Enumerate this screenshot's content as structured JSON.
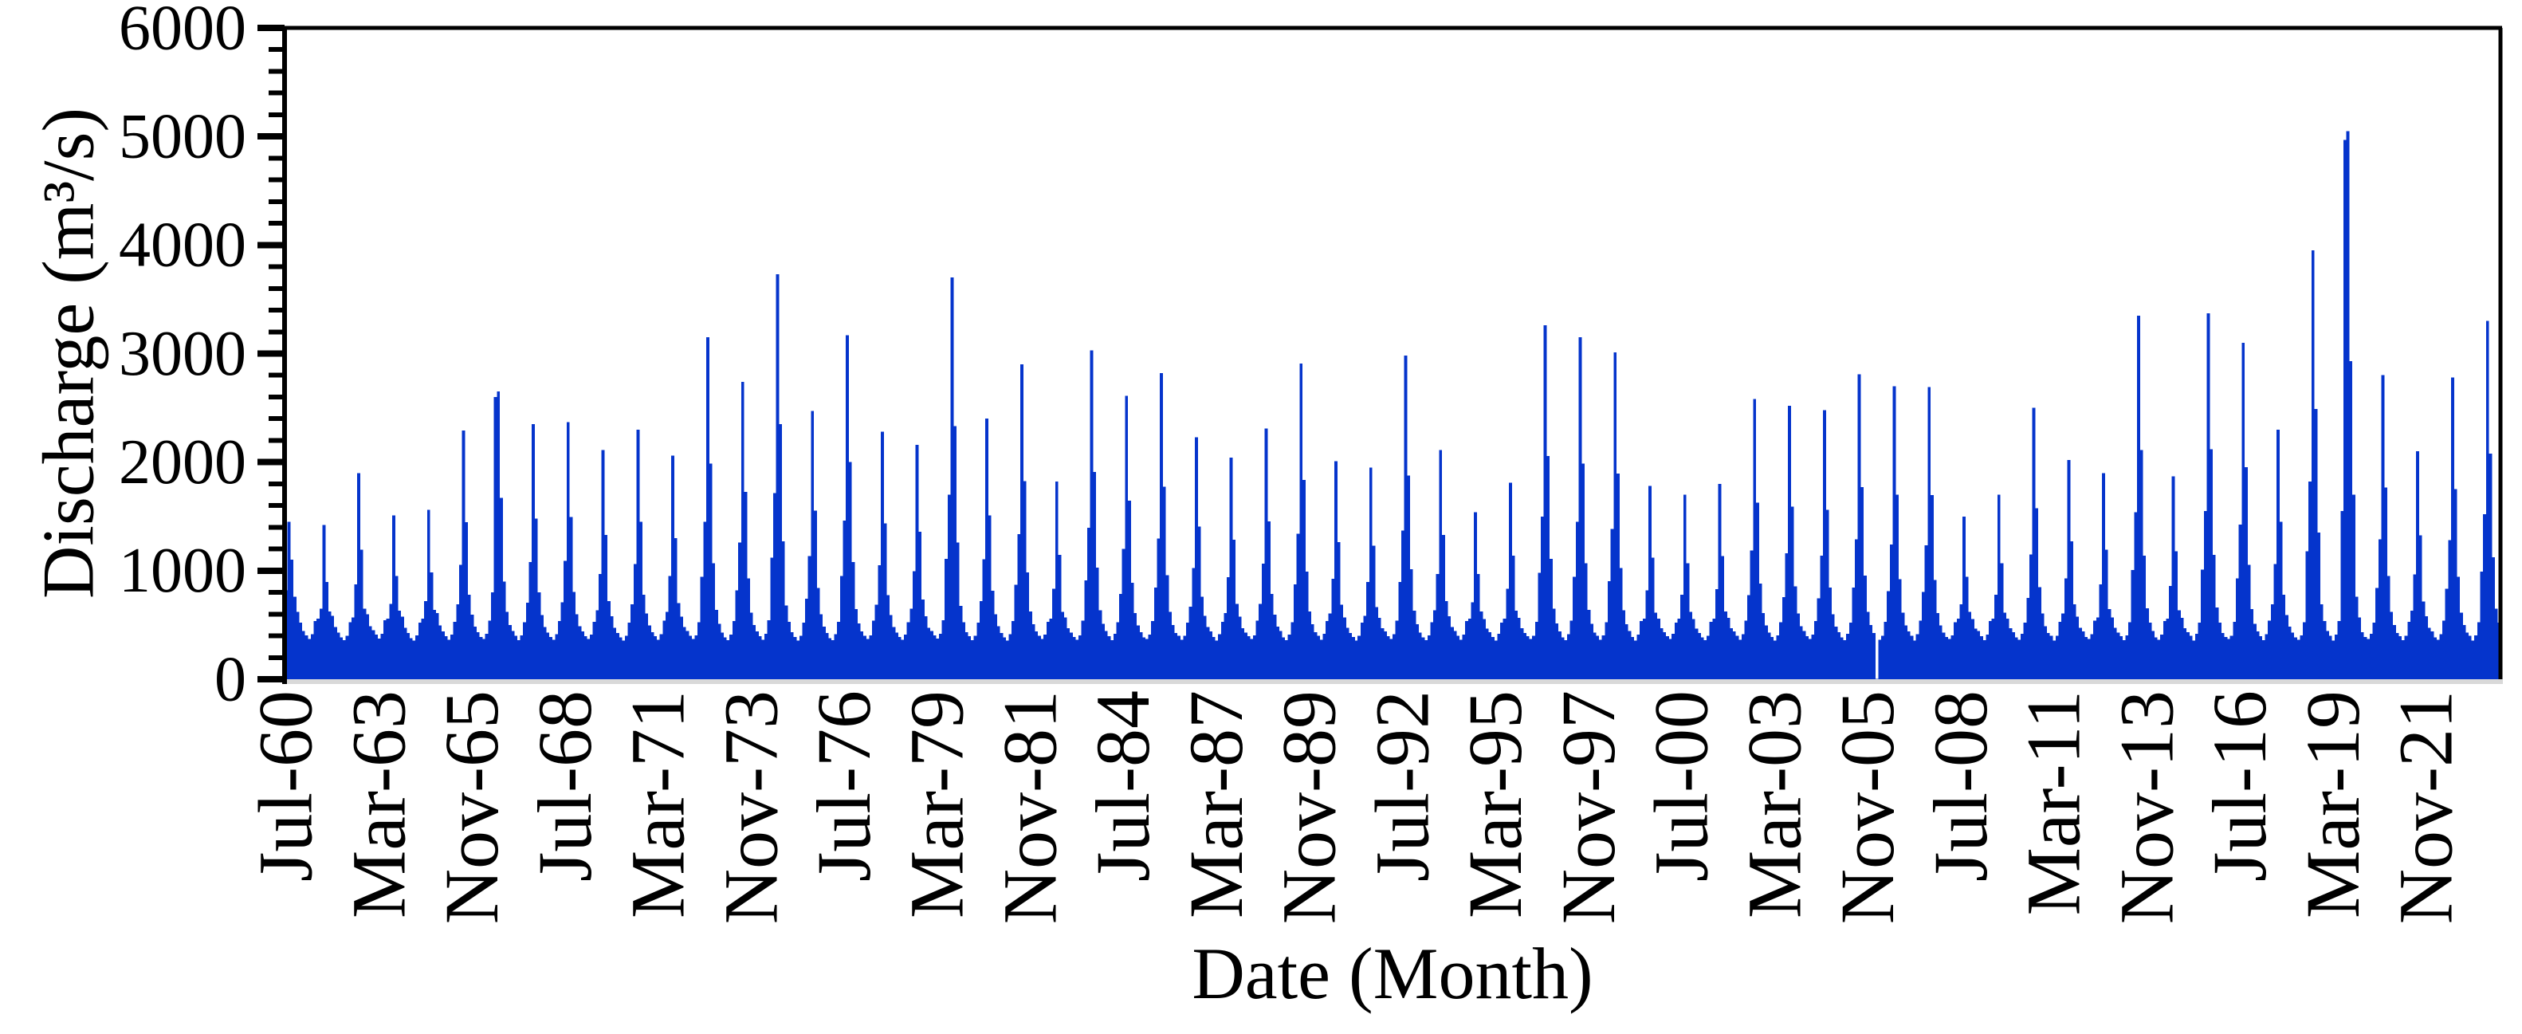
{
  "chart_data": {
    "type": "bar",
    "title": "",
    "xlabel": "Date (Month)",
    "ylabel": "Discharge (m³/s)",
    "x_start": "Jul-1960",
    "x_frequency": "monthly",
    "x_tick_interval_months": 32,
    "x_tick_labels": [
      "Jul-60",
      "Mar-63",
      "Nov-65",
      "Jul-68",
      "Mar-71",
      "Nov-73",
      "Jul-76",
      "Mar-79",
      "Nov-81",
      "Jul-84",
      "Mar-87",
      "Nov-89",
      "Jul-92",
      "Mar-95",
      "Nov-97",
      "Jul-00",
      "Mar-03",
      "Nov-05",
      "Jul-08",
      "Mar-11",
      "Nov-13",
      "Jul-16",
      "Mar-19",
      "Nov-21"
    ],
    "ylim": [
      0,
      6000
    ],
    "y_major_ticks": [
      0,
      1000,
      2000,
      3000,
      4000,
      5000,
      6000
    ],
    "y_minor_step": 200,
    "legend": "none",
    "grid": "off",
    "bar_color": "#0534cc",
    "axis_color": "#000000",
    "x_axis_line_color": "#d9d9d9",
    "values": [
      820,
      1450,
      1100,
      760,
      620,
      520,
      445,
      405,
      370,
      415,
      535,
      560,
      650,
      1420,
      895,
      625,
      585,
      480,
      430,
      385,
      360,
      400,
      525,
      570,
      875,
      1900,
      1195,
      650,
      600,
      490,
      450,
      410,
      375,
      420,
      545,
      560,
      695,
      1510,
      950,
      630,
      575,
      475,
      425,
      380,
      355,
      405,
      520,
      560,
      720,
      1560,
      985,
      640,
      610,
      495,
      440,
      395,
      365,
      410,
      530,
      690,
      1055,
      2290,
      1445,
      780,
      595,
      485,
      435,
      390,
      370,
      420,
      540,
      800,
      2600,
      2650,
      1670,
      900,
      620,
      500,
      445,
      400,
      360,
      405,
      525,
      705,
      1080,
      2350,
      1480,
      800,
      590,
      480,
      430,
      390,
      365,
      415,
      535,
      710,
      1090,
      2370,
      1495,
      805,
      600,
      490,
      440,
      395,
      370,
      410,
      530,
      635,
      970,
      2110,
      1330,
      720,
      580,
      475,
      425,
      385,
      355,
      400,
      520,
      690,
      1060,
      2300,
      1450,
      780,
      605,
      495,
      435,
      395,
      365,
      415,
      540,
      620,
      950,
      2060,
      1300,
      700,
      575,
      480,
      445,
      400,
      370,
      405,
      525,
      945,
      1450,
      3150,
      1985,
      1070,
      640,
      510,
      430,
      385,
      360,
      410,
      535,
      820,
      1260,
      2740,
      1725,
      930,
      615,
      500,
      440,
      395,
      365,
      420,
      545,
      1120,
      1715,
      3730,
      2350,
      1270,
      680,
      530,
      435,
      390,
      355,
      400,
      520,
      740,
      1135,
      2470,
      1555,
      840,
      600,
      485,
      425,
      380,
      360,
      415,
      530,
      950,
      1460,
      3170,
      2000,
      1080,
      645,
      515,
      440,
      400,
      370,
      405,
      540,
      685,
      1050,
      2280,
      1435,
      775,
      590,
      480,
      430,
      390,
      365,
      410,
      525,
      650,
      995,
      2160,
      1360,
      735,
      580,
      475,
      445,
      405,
      375,
      420,
      545,
      1110,
      1700,
      3700,
      2330,
      1260,
      675,
      525,
      435,
      395,
      360,
      400,
      520,
      720,
      1105,
      2400,
      1510,
      815,
      600,
      490,
      425,
      385,
      355,
      415,
      535,
      870,
      1335,
      2900,
      1825,
      985,
      625,
      505,
      440,
      400,
      370,
      410,
      530,
      560,
      835,
      1820,
      1145,
      620,
      570,
      470,
      430,
      390,
      365,
      405,
      540,
      910,
      1395,
      3030,
      1910,
      1030,
      635,
      510,
      445,
      395,
      360,
      420,
      525,
      785,
      1200,
      2610,
      1645,
      890,
      610,
      495,
      435,
      385,
      370,
      410,
      535,
      845,
      1295,
      2820,
      1775,
      960,
      620,
      500,
      425,
      400,
      365,
      400,
      520,
      670,
      1025,
      2230,
      1405,
      760,
      585,
      480,
      440,
      390,
      355,
      415,
      530,
      610,
      940,
      2040,
      1285,
      695,
      575,
      470,
      430,
      395,
      370,
      405,
      540,
      695,
      1065,
      2310,
      1455,
      785,
      595,
      485,
      445,
      385,
      360,
      410,
      525,
      875,
      1340,
      2910,
      1835,
      990,
      625,
      505,
      435,
      400,
      365,
      420,
      535,
      605,
      925,
      2010,
      1265,
      685,
      570,
      475,
      425,
      390,
      355,
      400,
      520,
      585,
      895,
      1950,
      1230,
      665,
      565,
      470,
      440,
      395,
      370,
      415,
      540,
      895,
      1370,
      2980,
      1875,
      1015,
      630,
      505,
      430,
      385,
      360,
      405,
      525,
      635,
      970,
      2110,
      1330,
      720,
      580,
      480,
      445,
      400,
      365,
      410,
      535,
      560,
      710,
      1540,
      970,
      625,
      555,
      465,
      435,
      390,
      355,
      420,
      520,
      560,
      835,
      1810,
      1140,
      630,
      565,
      470,
      425,
      395,
      370,
      400,
      530,
      980,
      1500,
      3260,
      2055,
      1110,
      650,
      515,
      440,
      385,
      360,
      415,
      540,
      945,
      1450,
      3150,
      1985,
      1070,
      640,
      510,
      430,
      400,
      365,
      405,
      525,
      905,
      1385,
      3010,
      1895,
      1025,
      635,
      505,
      445,
      390,
      355,
      410,
      535,
      560,
      820,
      1780,
      1120,
      615,
      560,
      470,
      435,
      395,
      370,
      420,
      520,
      560,
      780,
      1700,
      1070,
      620,
      555,
      465,
      425,
      385,
      360,
      400,
      530,
      560,
      830,
      1800,
      1135,
      625,
      565,
      470,
      440,
      400,
      365,
      415,
      540,
      775,
      1185,
      2580,
      1625,
      880,
      610,
      495,
      430,
      390,
      355,
      405,
      525,
      755,
      1160,
      2520,
      1590,
      855,
      605,
      490,
      445,
      395,
      370,
      410,
      535,
      745,
      1140,
      2480,
      1560,
      845,
      600,
      485,
      435,
      385,
      360,
      420,
      520,
      845,
      1290,
      2810,
      1770,
      955,
      620,
      500,
      425,
      5,
      365,
      400,
      530,
      810,
      1240,
      2700,
      1700,
      920,
      615,
      495,
      440,
      400,
      355,
      415,
      540,
      805,
      1235,
      2690,
      1695,
      915,
      610,
      495,
      430,
      390,
      370,
      405,
      525,
      560,
      690,
      1500,
      945,
      620,
      555,
      465,
      445,
      395,
      360,
      410,
      535,
      560,
      780,
      1700,
      1070,
      615,
      560,
      470,
      435,
      385,
      365,
      420,
      520,
      750,
      1150,
      2500,
      1575,
      850,
      605,
      490,
      425,
      400,
      355,
      400,
      530,
      605,
      930,
      2020,
      1270,
      690,
      575,
      475,
      440,
      390,
      370,
      415,
      540,
      570,
      875,
      1900,
      1195,
      645,
      570,
      475,
      430,
      395,
      360,
      405,
      525,
      1005,
      1540,
      3350,
      2110,
      1140,
      655,
      520,
      445,
      385,
      365,
      410,
      535,
      560,
      860,
      1870,
      1180,
      635,
      565,
      470,
      435,
      400,
      355,
      420,
      520,
      1010,
      1550,
      3370,
      2120,
      1145,
      660,
      520,
      425,
      390,
      370,
      400,
      530,
      930,
      1425,
      3100,
      1955,
      1055,
      645,
      510,
      440,
      395,
      360,
      415,
      540,
      690,
      1060,
      2300,
      1450,
      780,
      590,
      485,
      430,
      385,
      365,
      405,
      525,
      1180,
      1820,
      3950,
      2490,
      1350,
      690,
      535,
      445,
      400,
      355,
      410,
      535,
      1550,
      4970,
      5050,
      2930,
      1700,
      760,
      570,
      435,
      390,
      370,
      420,
      520,
      840,
      1290,
      2800,
      1765,
      950,
      620,
      500,
      425,
      395,
      360,
      400,
      530,
      630,
      965,
      2100,
      1325,
      715,
      580,
      475,
      440,
      385,
      365,
      415,
      540,
      835,
      1280,
      2780,
      1750,
      945,
      615,
      500,
      430,
      400,
      355,
      405,
      525,
      990,
      1520,
      3300,
      2080,
      1125,
      650,
      520
    ]
  }
}
